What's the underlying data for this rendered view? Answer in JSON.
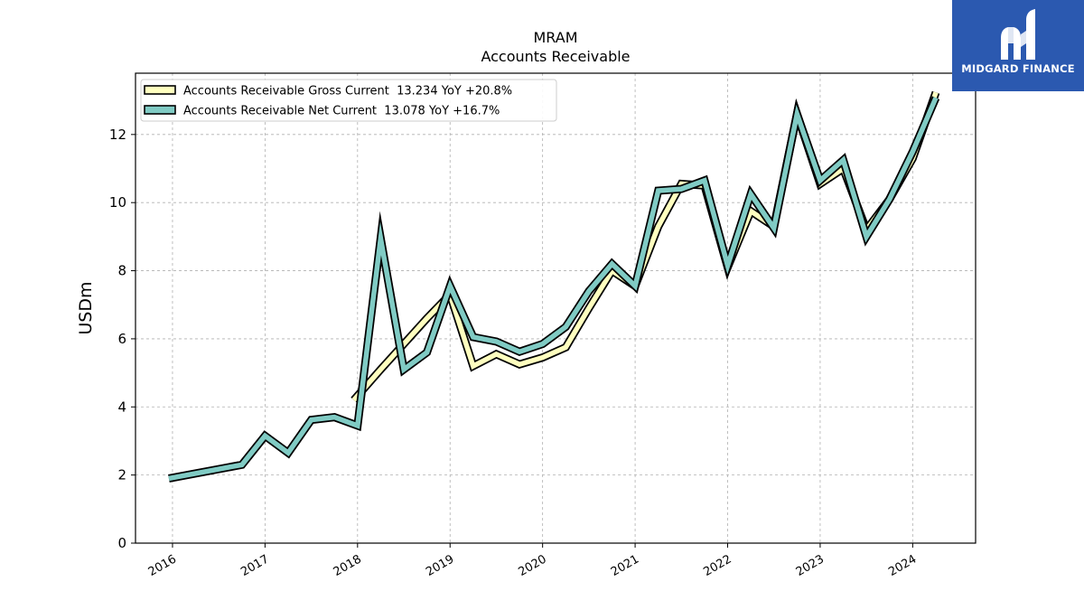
{
  "chart_data": {
    "type": "line",
    "title": "MRAM",
    "subtitle": "Accounts Receivable",
    "ylabel": "USDm",
    "xlabel": "",
    "ylim": [
      0,
      13.8
    ],
    "xlim": [
      2015.6,
      2024.68
    ],
    "yticks": [
      0,
      2,
      4,
      6,
      8,
      10,
      12
    ],
    "xticks": [
      2016,
      2017,
      2018,
      2019,
      2020,
      2021,
      2022,
      2023,
      2024
    ],
    "xtick_labels": [
      "2016",
      "2017",
      "2018",
      "2019",
      "2020",
      "2021",
      "2022",
      "2023",
      "2024"
    ],
    "grid": true,
    "legend_position": "top-left",
    "series": [
      {
        "name": "Accounts Receivable Gross Current  13.234 YoY +20.8%",
        "color": "#ffffbf",
        "x": [
          2017.96,
          2018.25,
          2018.5,
          2018.75,
          2019.0,
          2019.25,
          2019.5,
          2019.75,
          2020.0,
          2020.25,
          2020.5,
          2020.75,
          2021.0,
          2021.25,
          2021.5,
          2021.75,
          2022.0,
          2022.25,
          2022.5,
          2022.75,
          2023.0,
          2023.25,
          2023.5,
          2023.75,
          2024.0,
          2024.25
        ],
        "y": [
          4.2,
          5.1,
          5.85,
          6.6,
          7.3,
          5.2,
          5.55,
          5.25,
          5.45,
          5.75,
          6.9,
          8.0,
          7.55,
          9.3,
          10.55,
          10.5,
          8.1,
          9.75,
          9.3,
          12.6,
          10.55,
          11.0,
          9.2,
          10.1,
          11.3,
          13.234
        ]
      },
      {
        "name": "Accounts Receivable Net Current  13.078 YoY +16.7%",
        "color": "#80cbc4",
        "x": [
          2015.96,
          2016.75,
          2017.0,
          2017.25,
          2017.5,
          2017.75,
          2018.0,
          2018.25,
          2018.5,
          2018.75,
          2019.0,
          2019.25,
          2019.5,
          2019.75,
          2020.0,
          2020.25,
          2020.5,
          2020.75,
          2021.0,
          2021.25,
          2021.5,
          2021.75,
          2022.0,
          2022.25,
          2022.5,
          2022.75,
          2023.0,
          2023.25,
          2023.5,
          2023.75,
          2024.0,
          2024.25
        ],
        "y": [
          1.9,
          2.3,
          3.15,
          2.65,
          3.62,
          3.7,
          3.45,
          8.95,
          5.1,
          5.6,
          7.55,
          6.05,
          5.92,
          5.62,
          5.85,
          6.35,
          7.4,
          8.2,
          7.55,
          10.35,
          10.4,
          10.65,
          8.15,
          10.25,
          9.25,
          12.6,
          10.65,
          11.25,
          9.0,
          10.1,
          11.5,
          13.078
        ]
      }
    ]
  },
  "branding": {
    "name": "MIDGARD FINANCE"
  }
}
